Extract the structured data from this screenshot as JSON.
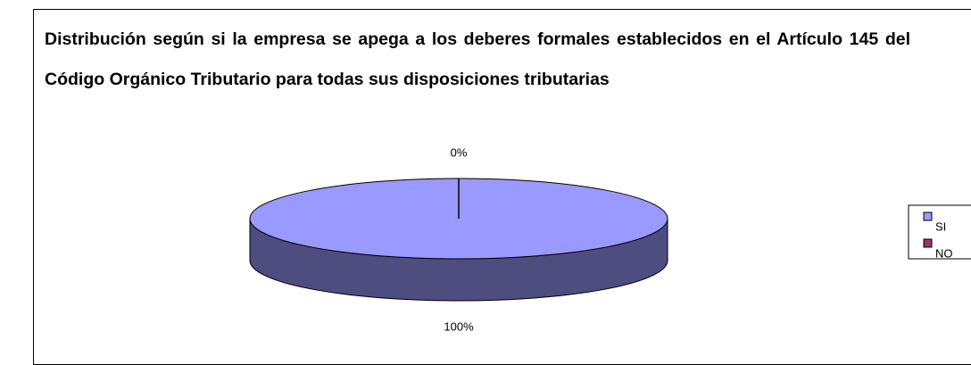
{
  "chart_data": {
    "type": "pie",
    "title": "Distribución según si la empresa se apega a los deberes formales establecidos en el Artículo 145 del Código  Orgánico Tributario para todas sus disposiciones tributarias",
    "categories": [
      "SI",
      "NO"
    ],
    "values": [
      100,
      0
    ],
    "value_labels": [
      "100%",
      "0%"
    ],
    "colors": [
      "#9999ff",
      "#993366"
    ],
    "legend": "right"
  }
}
